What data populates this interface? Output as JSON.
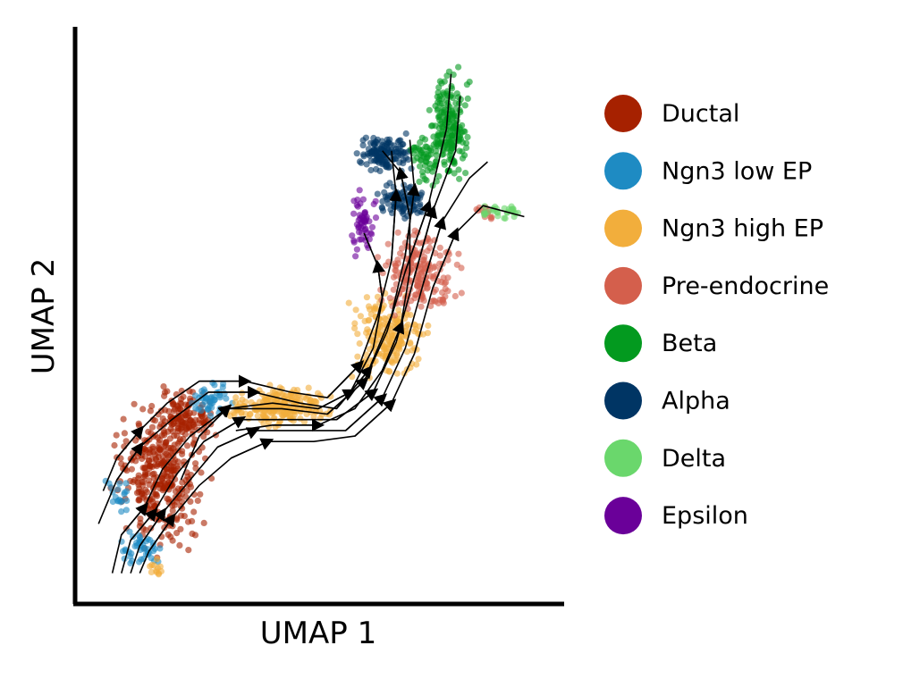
{
  "chart_data": {
    "type": "scatter",
    "subtype": "umap-embedding-with-velocity-streamlines",
    "title": "",
    "xlabel": "UMAP 1",
    "ylabel": "UMAP 2",
    "xlim": [
      0,
      100
    ],
    "ylim": [
      0,
      100
    ],
    "grid": false,
    "ticks": false,
    "legend_placement": "right",
    "series": [
      {
        "name": "Ductal",
        "color": "#a62100",
        "clusters": [
          {
            "x": [
              3,
              28
            ],
            "y": [
              5,
              37
            ],
            "n": 340
          },
          {
            "x": [
              12,
              29
            ],
            "y": [
              24,
              38
            ],
            "n": 120
          }
        ]
      },
      {
        "name": "Ngn3 low EP",
        "color": "#1e8bc3",
        "clusters": [
          {
            "x": [
              4,
              18
            ],
            "y": [
              3,
              12
            ],
            "n": 45
          },
          {
            "x": [
              20,
              34
            ],
            "y": [
              30,
              39
            ],
            "n": 45
          },
          {
            "x": [
              3,
              10
            ],
            "y": [
              12,
              22
            ],
            "n": 20
          }
        ]
      },
      {
        "name": "Ngn3 high EP",
        "color": "#f2ae3c",
        "clusters": [
          {
            "x": [
              28,
              55
            ],
            "y": [
              29,
              38
            ],
            "n": 230
          },
          {
            "x": [
              55,
              76
            ],
            "y": [
              36,
              56
            ],
            "n": 200
          },
          {
            "x": [
              11,
              18
            ],
            "y": [
              2,
              6
            ],
            "n": 12
          }
        ]
      },
      {
        "name": "Pre-endocrine",
        "color": "#d45f4c",
        "clusters": [
          {
            "x": [
              61,
              83
            ],
            "y": [
              48,
              68
            ],
            "n": 200
          },
          {
            "x": [
              83,
              90
            ],
            "y": [
              66,
              71
            ],
            "n": 12
          }
        ]
      },
      {
        "name": "Beta",
        "color": "#039a1f",
        "clusters": [
          {
            "x": [
              73,
              84
            ],
            "y": [
              71,
              97
            ],
            "n": 200
          },
          {
            "x": [
              69,
              78
            ],
            "y": [
              73,
              84
            ],
            "n": 50
          }
        ]
      },
      {
        "name": "Alpha",
        "color": "#003564",
        "clusters": [
          {
            "x": [
              57,
              72
            ],
            "y": [
              75,
              84
            ],
            "n": 130
          },
          {
            "x": [
              61,
              76
            ],
            "y": [
              66,
              76
            ],
            "n": 90
          }
        ]
      },
      {
        "name": "Delta",
        "color": "#6ad76c",
        "clusters": [
          {
            "x": [
              84,
              96
            ],
            "y": [
              67,
              71
            ],
            "n": 30
          }
        ]
      },
      {
        "name": "Epsilon",
        "color": "#6a0099",
        "clusters": [
          {
            "x": [
              56,
              64
            ],
            "y": [
              59,
              74
            ],
            "n": 55
          }
        ]
      }
    ],
    "streamlines": [
      [
        [
          5,
          3
        ],
        [
          7,
          10
        ],
        [
          12,
          15
        ],
        [
          16,
          22
        ],
        [
          22,
          28
        ],
        [
          30,
          33
        ],
        [
          42,
          33
        ],
        [
          52,
          32
        ],
        [
          60,
          38
        ],
        [
          65,
          47
        ],
        [
          69,
          58
        ],
        [
          74,
          70
        ],
        [
          78,
          84
        ],
        [
          79,
          94
        ]
      ],
      [
        [
          7,
          3
        ],
        [
          9,
          9
        ],
        [
          14,
          14
        ],
        [
          19,
          21
        ],
        [
          25,
          27
        ],
        [
          33,
          31
        ],
        [
          44,
          31
        ],
        [
          54,
          31
        ],
        [
          62,
          36
        ],
        [
          67,
          45
        ],
        [
          71,
          57
        ],
        [
          75,
          69
        ],
        [
          80,
          80
        ],
        [
          81,
          90
        ]
      ],
      [
        [
          9,
          3
        ],
        [
          11,
          8
        ],
        [
          16,
          14
        ],
        [
          22,
          20
        ],
        [
          28,
          26
        ],
        [
          36,
          29
        ],
        [
          46,
          29
        ],
        [
          56,
          29
        ],
        [
          64,
          35
        ],
        [
          69,
          44
        ],
        [
          73,
          56
        ],
        [
          77,
          67
        ],
        [
          83,
          75
        ],
        [
          87,
          78
        ]
      ],
      [
        [
          11,
          3
        ],
        [
          13,
          7
        ],
        [
          18,
          13
        ],
        [
          24,
          19
        ],
        [
          31,
          24
        ],
        [
          39,
          27
        ],
        [
          49,
          27
        ],
        [
          58,
          28
        ],
        [
          66,
          34
        ],
        [
          71,
          43
        ],
        [
          75,
          55
        ],
        [
          80,
          65
        ],
        [
          86,
          70
        ],
        [
          95,
          68
        ]
      ],
      [
        [
          3,
          18
        ],
        [
          6,
          24
        ],
        [
          11,
          29
        ],
        [
          17,
          34
        ],
        [
          24,
          38
        ],
        [
          34,
          38
        ],
        [
          44,
          36
        ],
        [
          52,
          35
        ],
        [
          59,
          41
        ],
        [
          63,
          50
        ],
        [
          66,
          60
        ],
        [
          67,
          72
        ],
        [
          66,
          80
        ]
      ],
      [
        [
          2,
          12
        ],
        [
          6,
          20
        ],
        [
          11,
          26
        ],
        [
          18,
          31
        ],
        [
          26,
          36
        ],
        [
          36,
          36
        ],
        [
          46,
          34
        ],
        [
          54,
          33
        ],
        [
          61,
          40
        ],
        [
          66,
          50
        ],
        [
          69,
          61
        ],
        [
          71,
          73
        ],
        [
          70,
          82
        ]
      ],
      [
        [
          20,
          20
        ],
        [
          24,
          28
        ],
        [
          30,
          33
        ],
        [
          40,
          34
        ],
        [
          50,
          33
        ],
        [
          57,
          36
        ],
        [
          62,
          44
        ],
        [
          64,
          53
        ],
        [
          63,
          59
        ],
        [
          60,
          65
        ]
      ],
      [
        [
          32,
          29
        ],
        [
          40,
          30
        ],
        [
          50,
          30
        ],
        [
          58,
          33
        ],
        [
          64,
          40
        ],
        [
          68,
          48
        ],
        [
          70,
          58
        ],
        [
          70,
          68
        ],
        [
          68,
          76
        ],
        [
          64,
          80
        ]
      ]
    ]
  },
  "legend": {
    "title": "",
    "items": [
      {
        "label": "Ductal",
        "color": "#a62100"
      },
      {
        "label": "Ngn3 low EP",
        "color": "#1e8bc3"
      },
      {
        "label": "Ngn3 high EP",
        "color": "#f2ae3c"
      },
      {
        "label": "Pre-endocrine",
        "color": "#d45f4c"
      },
      {
        "label": "Beta",
        "color": "#039a1f"
      },
      {
        "label": "Alpha",
        "color": "#003564"
      },
      {
        "label": "Delta",
        "color": "#6ad76c"
      },
      {
        "label": "Epsilon",
        "color": "#6a0099"
      }
    ]
  }
}
